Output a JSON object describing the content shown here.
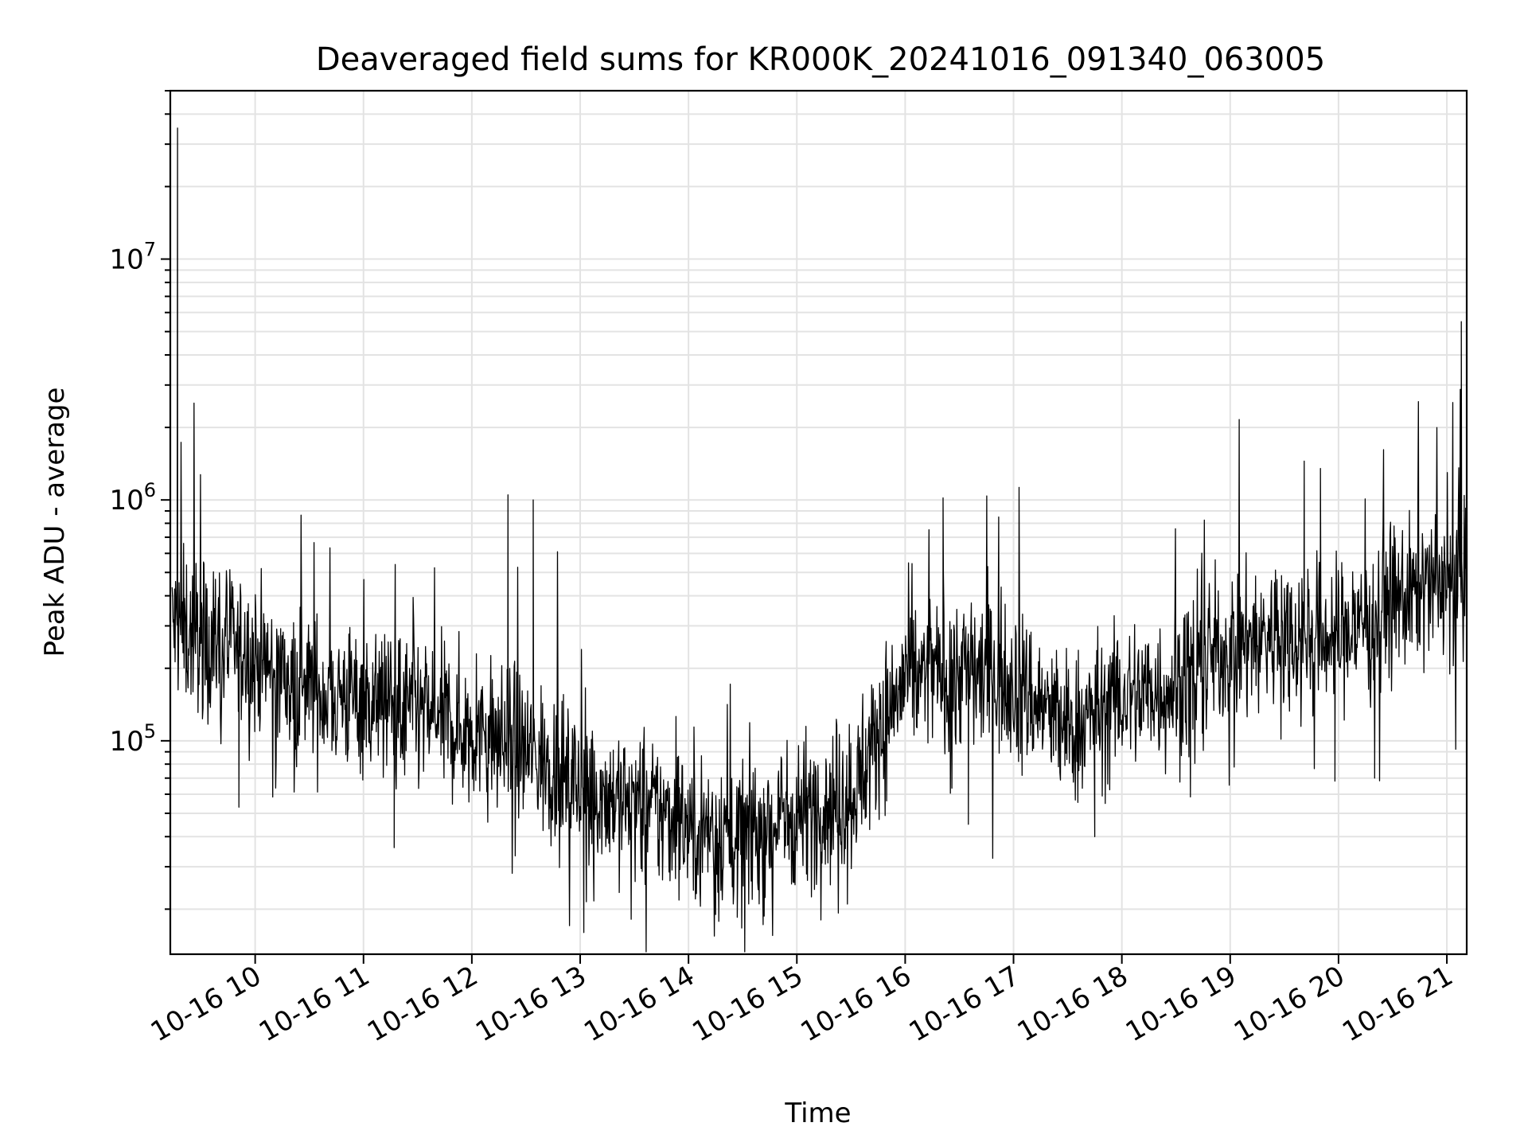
{
  "chart_data": {
    "type": "line",
    "title": "Deaveraged field sums for KR000K_20241016_091340_063005",
    "xlabel": "Time",
    "ylabel": "Peak ADU - average",
    "yscale": "log",
    "grid": true,
    "grid_minor": true,
    "line_color": "#000000",
    "xlim": [
      "2024-10-16 09:13",
      "2024-10-16 21:11"
    ],
    "ylim": [
      13000,
      50000000
    ],
    "x_ticks": [
      {
        "value": "2024-10-16 10:00",
        "label": "10-16 10"
      },
      {
        "value": "2024-10-16 11:00",
        "label": "10-16 11"
      },
      {
        "value": "2024-10-16 12:00",
        "label": "10-16 12"
      },
      {
        "value": "2024-10-16 13:00",
        "label": "10-16 13"
      },
      {
        "value": "2024-10-16 14:00",
        "label": "10-16 14"
      },
      {
        "value": "2024-10-16 15:00",
        "label": "10-16 15"
      },
      {
        "value": "2024-10-16 16:00",
        "label": "10-16 16"
      },
      {
        "value": "2024-10-16 17:00",
        "label": "10-16 17"
      },
      {
        "value": "2024-10-16 18:00",
        "label": "10-16 18"
      },
      {
        "value": "2024-10-16 19:00",
        "label": "10-16 19"
      },
      {
        "value": "2024-10-16 20:00",
        "label": "10-16 20"
      },
      {
        "value": "2024-10-16 21:00",
        "label": "10-16 21"
      }
    ],
    "y_ticks": [
      {
        "value": 100000,
        "base": "10",
        "exp": "5"
      },
      {
        "value": 1000000,
        "base": "10",
        "exp": "6"
      },
      {
        "value": 10000000,
        "base": "10",
        "exp": "7"
      }
    ],
    "series": [
      {
        "baseline": {
          "x": [
            "2024-10-16 09:14",
            "2024-10-16 09:30",
            "2024-10-16 10:00",
            "2024-10-16 10:30",
            "2024-10-16 11:00",
            "2024-10-16 11:30",
            "2024-10-16 12:00",
            "2024-10-16 12:30",
            "2024-10-16 13:00",
            "2024-10-16 13:30",
            "2024-10-16 14:00",
            "2024-10-16 14:30",
            "2024-10-16 15:00",
            "2024-10-16 15:30",
            "2024-10-16 16:00",
            "2024-10-16 16:30",
            "2024-10-16 17:00",
            "2024-10-16 17:30",
            "2024-10-16 18:00",
            "2024-10-16 18:30",
            "2024-10-16 19:00",
            "2024-10-16 19:30",
            "2024-10-16 20:00",
            "2024-10-16 20:30",
            "2024-10-16 21:00",
            "2024-10-16 21:11"
          ],
          "y": [
            300000,
            270000,
            220000,
            160000,
            150000,
            130000,
            110000,
            90000,
            65000,
            55000,
            45000,
            40000,
            50000,
            60000,
            180000,
            200000,
            180000,
            110000,
            150000,
            170000,
            250000,
            280000,
            270000,
            380000,
            450000,
            500000
          ]
        },
        "spikes": [
          {
            "x": "2024-10-16 09:17",
            "y": 35000000
          },
          {
            "x": "2024-10-16 12:20",
            "y": 1050000
          },
          {
            "x": "2024-10-16 12:34",
            "y": 1000000
          },
          {
            "x": "2024-10-16 16:21",
            "y": 1020000
          },
          {
            "x": "2024-10-16 19:41",
            "y": 1450000
          },
          {
            "x": "2024-10-16 19:50",
            "y": 1350000
          },
          {
            "x": "2024-10-16 21:08",
            "y": 5500000
          }
        ],
        "dips": [
          {
            "x": "2024-10-16 09:51",
            "y": 53000
          },
          {
            "x": "2024-10-16 11:17",
            "y": 36000
          },
          {
            "x": "2024-10-16 13:02",
            "y": 16000
          },
          {
            "x": "2024-10-16 14:15",
            "y": 19000
          },
          {
            "x": "2024-10-16 14:27",
            "y": 18500
          },
          {
            "x": "2024-10-16 15:28",
            "y": 21000
          },
          {
            "x": "2024-10-16 16:35",
            "y": 45000
          },
          {
            "x": "2024-10-16 17:45",
            "y": 40000
          },
          {
            "x": "2024-10-16 19:58",
            "y": 68000
          },
          {
            "x": "2024-10-16 20:20",
            "y": 70000
          }
        ]
      }
    ]
  }
}
